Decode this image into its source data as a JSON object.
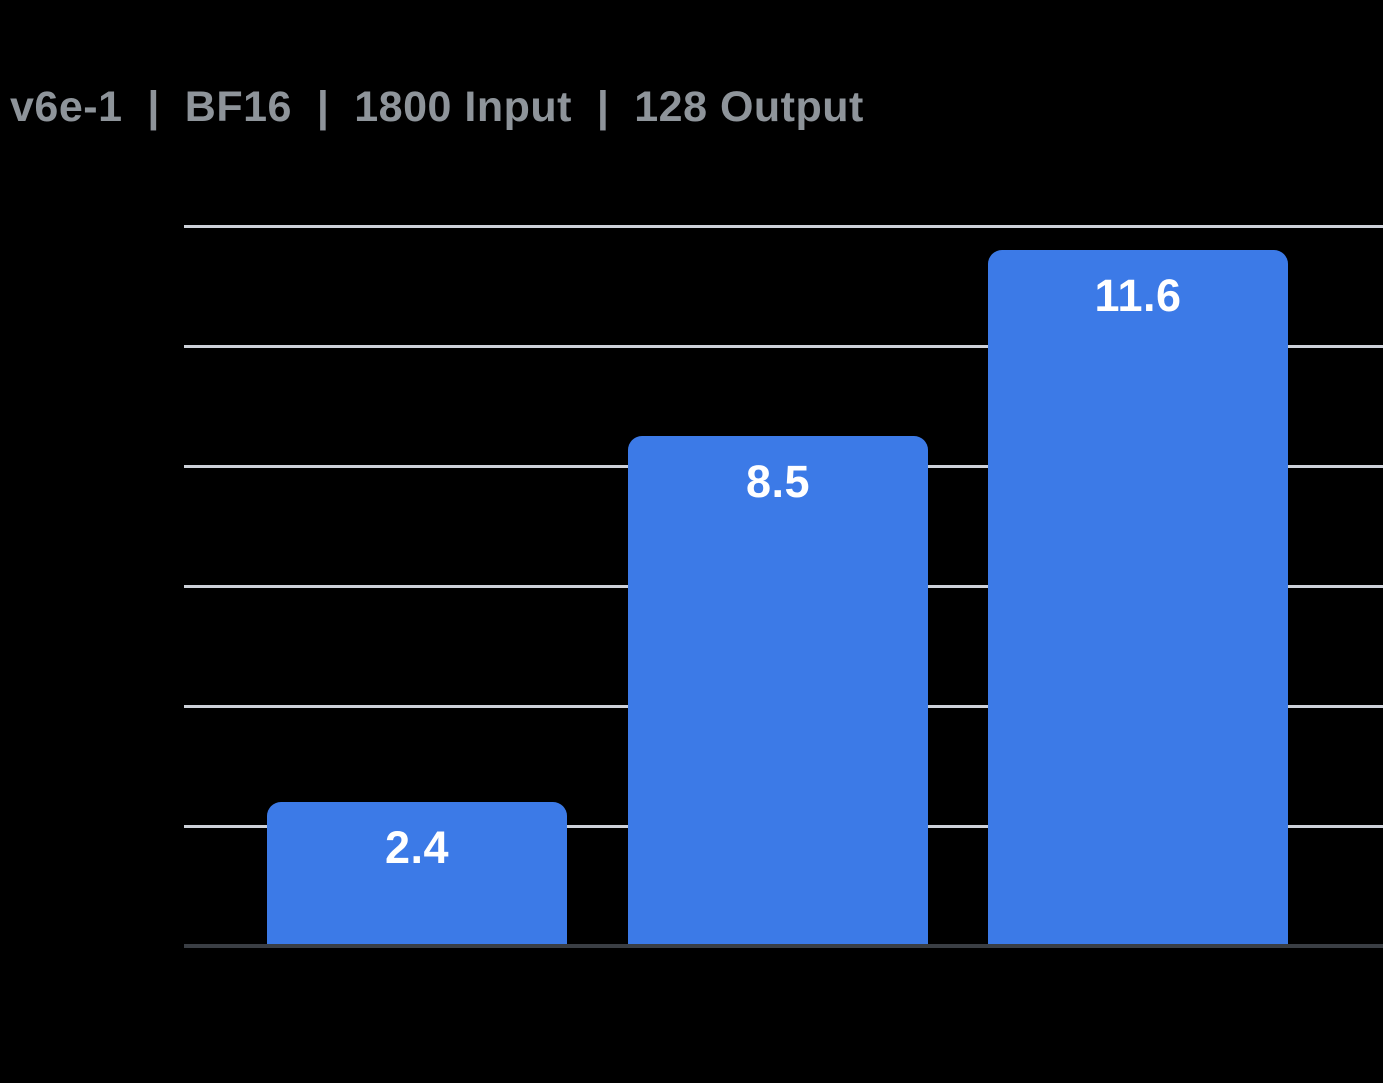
{
  "chart_data": {
    "type": "bar",
    "title": "v6e-1  |  BF16  |  1800 Input  |  128 Output",
    "values": [
      2.4,
      8.5,
      11.6
    ],
    "value_labels": [
      "2.4",
      "8.5",
      "11.6"
    ],
    "categories": [
      "",
      "",
      ""
    ],
    "xlabel": "",
    "ylabel": "",
    "ylim": [
      0,
      12
    ],
    "gridline_step": 2,
    "grid": true,
    "legend_position": "none",
    "x_tick_labels_visible": false,
    "y_tick_labels_visible": false,
    "colors": {
      "background": "#000000",
      "bar": "#3C7AE7",
      "bar_label": "#FFFFFF",
      "title": "#8E949A",
      "gridline": "#CDD1D9",
      "axis_line": "#3A3E44"
    }
  }
}
